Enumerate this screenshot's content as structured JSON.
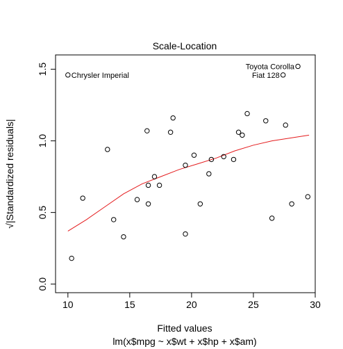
{
  "chart_data": {
    "type": "scatter",
    "title": "Scale-Location",
    "xlabel": "Fitted values",
    "sublabel": "lm(x$mpg ~ x$wt + x$hp + x$am)",
    "ylabel": "√|Standardized residuals|",
    "xlim": [
      9.0,
      30.0
    ],
    "ylim": [
      -0.06,
      1.6
    ],
    "x_ticks": [
      10,
      15,
      20,
      25,
      30
    ],
    "x_tick_labels": [
      "10",
      "15",
      "20",
      "25",
      "30"
    ],
    "y_ticks": [
      0.0,
      0.5,
      1.0,
      1.5
    ],
    "y_tick_labels": [
      "0.0",
      "0.5",
      "1.0",
      "1.5"
    ],
    "grid": false,
    "series": [
      {
        "marker": "open-circle",
        "x": [
          10.0,
          10.3,
          11.2,
          13.2,
          13.7,
          14.5,
          15.6,
          16.4,
          16.5,
          16.5,
          17.0,
          17.4,
          18.3,
          18.5,
          19.5,
          19.5,
          20.2,
          20.7,
          21.4,
          21.6,
          22.6,
          23.4,
          23.8,
          24.1,
          24.5,
          26.0,
          26.5,
          27.4,
          27.6,
          28.1,
          28.6,
          29.4
        ],
        "y": [
          1.46,
          0.18,
          0.6,
          0.94,
          0.45,
          0.33,
          0.59,
          1.07,
          0.69,
          0.56,
          0.75,
          0.69,
          1.06,
          1.16,
          0.83,
          0.35,
          0.9,
          0.56,
          0.77,
          0.87,
          0.89,
          0.87,
          1.06,
          1.04,
          1.19,
          1.14,
          0.46,
          1.46,
          1.11,
          0.56,
          1.52,
          0.61
        ]
      }
    ],
    "smoother": {
      "color": "#e41a1c",
      "x": [
        10.0,
        11.5,
        13.0,
        14.5,
        16.0,
        17.5,
        19.0,
        20.5,
        22.0,
        23.5,
        25.0,
        26.5,
        28.0,
        29.5
      ],
      "y": [
        0.37,
        0.45,
        0.54,
        0.63,
        0.7,
        0.75,
        0.8,
        0.84,
        0.88,
        0.93,
        0.97,
        1.0,
        1.02,
        1.04
      ]
    },
    "annotations": [
      {
        "label": "Chrysler Imperial",
        "x": 10.0,
        "y": 1.46,
        "side": "right"
      },
      {
        "label": "Toyota Corolla",
        "x": 28.6,
        "y": 1.52,
        "side": "left"
      },
      {
        "label": "Fiat 128",
        "x": 27.4,
        "y": 1.46,
        "side": "left"
      }
    ]
  }
}
